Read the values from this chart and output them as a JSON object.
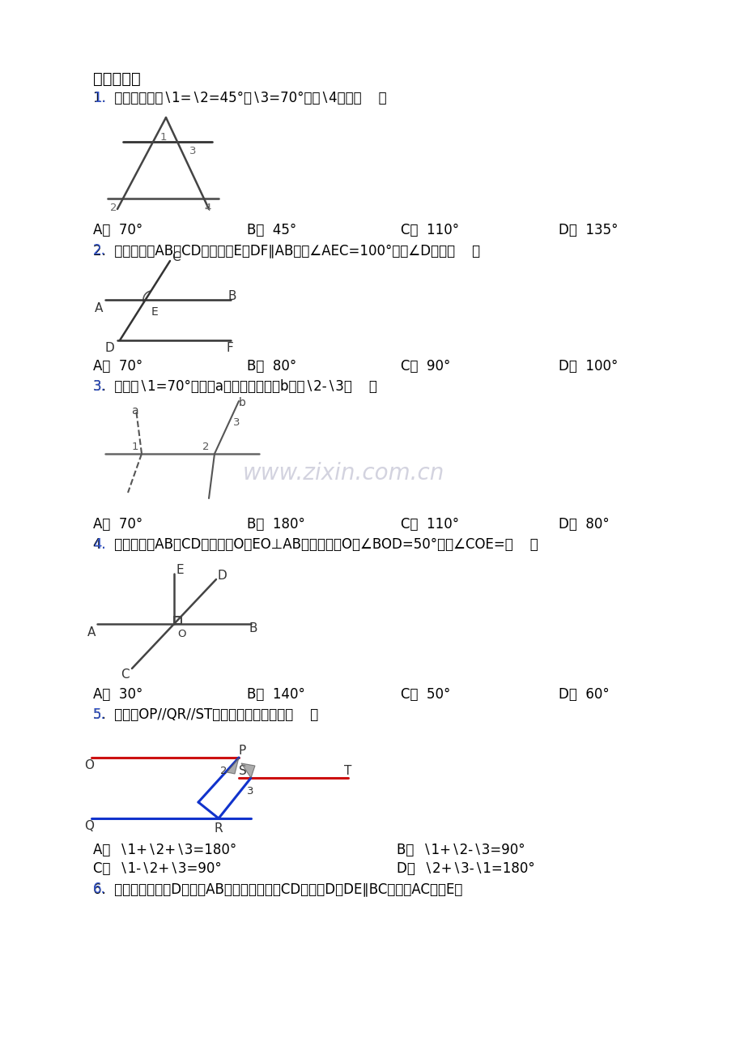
{
  "bg_color": "#ffffff",
  "title": "一、选择题",
  "q1_text": "1.  如图所示，若∖1=∖2=45°，∖3=70°，则∖4等于（    ）",
  "q1_opts": [
    "A．  70°",
    "B．  45°",
    "C．  110°",
    "D．  135°"
  ],
  "q2_text": "2.  如图，直线AB、CD相交于点E，DF∥AB．若∠AEC=100°，则∠D等于（    ）",
  "q2_opts": [
    "A．  70°",
    "B．  80°",
    "C．  90°",
    "D．  100°"
  ],
  "q3_text": "3.  如图，∖1=70°，直线a平移后得到直线b，则∖2-∖3（    ）",
  "q3_opts": [
    "A．  70°",
    "B．  180°",
    "C．  110°",
    "D．  80°"
  ],
  "q4_text": "4.  如图，直线AB，CD相交于点O，EO⊥AB，垂直为点O，∠BOD=50°，则∠COE=（    ）",
  "q4_opts": [
    "A．  30°",
    "B．  140°",
    "C．  50°",
    "D．  60°"
  ],
  "q5_text": "5.  如图，OP//QR//ST下列各式中正确的是（    ）",
  "q5_opts": [
    "A．  ∖1+∖2+∖3=180°",
    "B．  ∖1+∖2-∖3=90°",
    "C．  ∖1-∖2+∖3=90°",
    "D．  ∖2+∖3-∖1=180°"
  ],
  "q6_text": "6.  已知，如图，点D是射线AB上一动点，连接CD，过点D作DE∥BC交直线AC于点E，",
  "watermark": "www.zixin.com.cn",
  "wm_color": "#c8c8d8"
}
